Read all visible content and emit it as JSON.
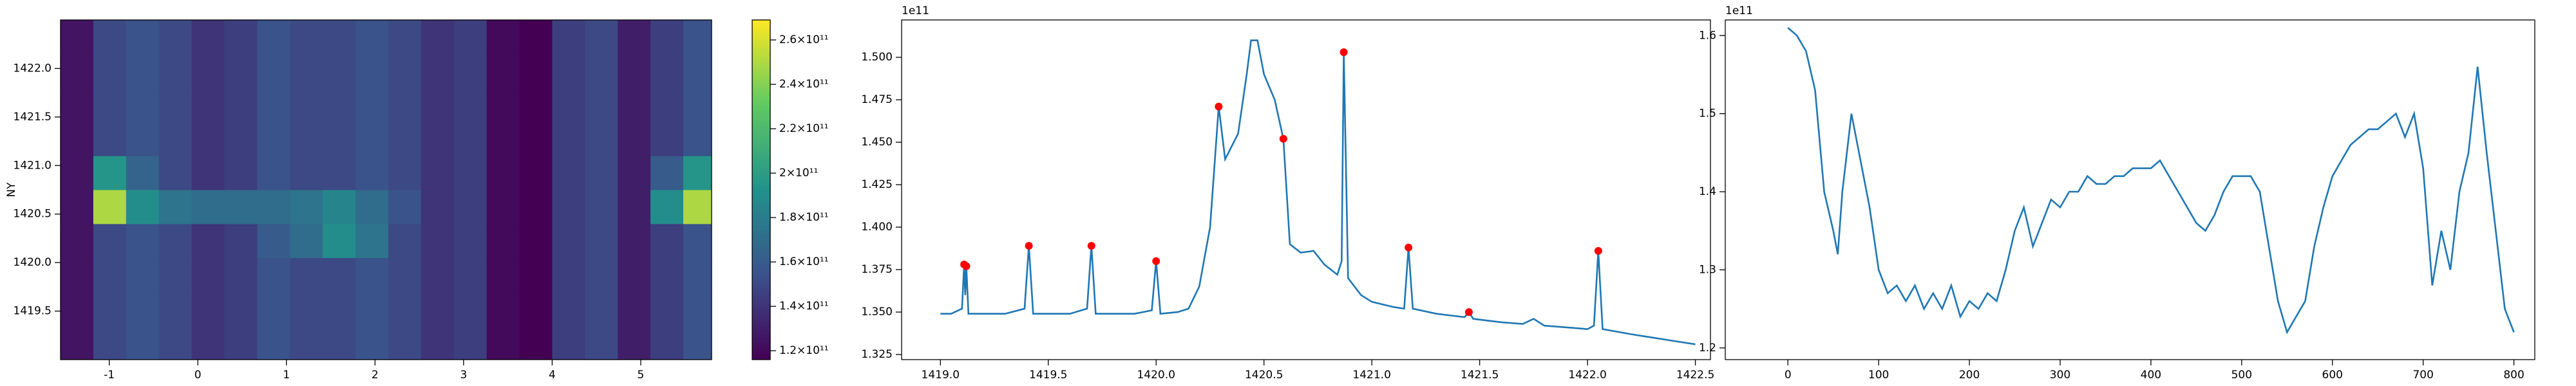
{
  "chart_data": [
    {
      "type": "heatmap",
      "y_label": "NY",
      "colormap": "viridis",
      "x_edges": [
        -1.55,
        -1.18,
        -0.81,
        -0.44,
        -0.07,
        0.3,
        0.67,
        1.04,
        1.41,
        1.78,
        2.15,
        2.52,
        2.89,
        3.26,
        3.63,
        4.0,
        4.37,
        4.74,
        5.11,
        5.48,
        5.8
      ],
      "y_edges": [
        1419.0,
        1419.35,
        1419.7,
        1420.05,
        1420.4,
        1420.75,
        1421.1,
        1421.45,
        1421.8,
        1422.15,
        1422.5
      ],
      "z": [
        [
          125000000000.0,
          150000000000.0,
          155000000000.0,
          150000000000.0,
          140000000000.0,
          145000000000.0,
          155000000000.0,
          150000000000.0,
          150000000000.0,
          155000000000.0,
          150000000000.0,
          140000000000.0,
          145000000000.0,
          120000000000.0,
          115000000000.0,
          145000000000.0,
          150000000000.0,
          130000000000.0,
          145000000000.0,
          155000000000.0
        ],
        [
          125000000000.0,
          150000000000.0,
          155000000000.0,
          150000000000.0,
          140000000000.0,
          145000000000.0,
          155000000000.0,
          150000000000.0,
          150000000000.0,
          155000000000.0,
          150000000000.0,
          140000000000.0,
          145000000000.0,
          120000000000.0,
          115000000000.0,
          145000000000.0,
          150000000000.0,
          130000000000.0,
          145000000000.0,
          155000000000.0
        ],
        [
          125000000000.0,
          150000000000.0,
          155000000000.0,
          150000000000.0,
          140000000000.0,
          145000000000.0,
          155000000000.0,
          150000000000.0,
          150000000000.0,
          155000000000.0,
          150000000000.0,
          140000000000.0,
          145000000000.0,
          120000000000.0,
          115000000000.0,
          145000000000.0,
          150000000000.0,
          130000000000.0,
          145000000000.0,
          155000000000.0
        ],
        [
          125000000000.0,
          150000000000.0,
          155000000000.0,
          150000000000.0,
          140000000000.0,
          145000000000.0,
          160000000000.0,
          170000000000.0,
          190000000000.0,
          175000000000.0,
          150000000000.0,
          140000000000.0,
          145000000000.0,
          120000000000.0,
          115000000000.0,
          145000000000.0,
          150000000000.0,
          130000000000.0,
          145000000000.0,
          155000000000.0
        ],
        [
          125000000000.0,
          250000000000.0,
          190000000000.0,
          175000000000.0,
          170000000000.0,
          170000000000.0,
          170000000000.0,
          175000000000.0,
          185000000000.0,
          170000000000.0,
          155000000000.0,
          140000000000.0,
          145000000000.0,
          120000000000.0,
          115000000000.0,
          145000000000.0,
          150000000000.0,
          130000000000.0,
          190000000000.0,
          250000000000.0
        ],
        [
          125000000000.0,
          195000000000.0,
          165000000000.0,
          150000000000.0,
          140000000000.0,
          145000000000.0,
          155000000000.0,
          150000000000.0,
          150000000000.0,
          155000000000.0,
          150000000000.0,
          140000000000.0,
          145000000000.0,
          120000000000.0,
          115000000000.0,
          145000000000.0,
          150000000000.0,
          130000000000.0,
          160000000000.0,
          195000000000.0
        ],
        [
          125000000000.0,
          150000000000.0,
          155000000000.0,
          150000000000.0,
          140000000000.0,
          145000000000.0,
          155000000000.0,
          150000000000.0,
          150000000000.0,
          155000000000.0,
          150000000000.0,
          140000000000.0,
          145000000000.0,
          120000000000.0,
          115000000000.0,
          145000000000.0,
          150000000000.0,
          130000000000.0,
          145000000000.0,
          155000000000.0
        ],
        [
          125000000000.0,
          150000000000.0,
          155000000000.0,
          150000000000.0,
          140000000000.0,
          145000000000.0,
          155000000000.0,
          150000000000.0,
          150000000000.0,
          155000000000.0,
          150000000000.0,
          140000000000.0,
          145000000000.0,
          120000000000.0,
          115000000000.0,
          145000000000.0,
          150000000000.0,
          130000000000.0,
          145000000000.0,
          155000000000.0
        ],
        [
          125000000000.0,
          150000000000.0,
          155000000000.0,
          150000000000.0,
          140000000000.0,
          145000000000.0,
          155000000000.0,
          150000000000.0,
          150000000000.0,
          155000000000.0,
          150000000000.0,
          140000000000.0,
          145000000000.0,
          120000000000.0,
          115000000000.0,
          145000000000.0,
          150000000000.0,
          130000000000.0,
          145000000000.0,
          155000000000.0
        ],
        [
          125000000000.0,
          150000000000.0,
          155000000000.0,
          150000000000.0,
          140000000000.0,
          145000000000.0,
          155000000000.0,
          150000000000.0,
          150000000000.0,
          155000000000.0,
          150000000000.0,
          140000000000.0,
          145000000000.0,
          120000000000.0,
          115000000000.0,
          145000000000.0,
          150000000000.0,
          130000000000.0,
          145000000000.0,
          155000000000.0
        ]
      ],
      "xlim": [
        -1.55,
        5.8
      ],
      "xticks": [
        -1,
        0,
        1,
        2,
        3,
        4,
        5
      ],
      "ylim": [
        1419.0,
        1422.5
      ],
      "yticks": [
        {
          "value": 1419.5,
          "label": "1419.5"
        },
        {
          "value": 1420.0,
          "label": "1420.0"
        },
        {
          "value": 1420.5,
          "label": "1420.5"
        },
        {
          "value": 1421.0,
          "label": "1421.0"
        },
        {
          "value": 1421.5,
          "label": "1421.5"
        },
        {
          "value": 1422.0,
          "label": "1422.0"
        }
      ],
      "clim": [
        116000000000.0,
        269000000000.0
      ],
      "colorbar_ticks": [
        {
          "value": 120000000000.0,
          "label": "1.2×10¹¹"
        },
        {
          "value": 140000000000.0,
          "label": "1.4×10¹¹"
        },
        {
          "value": 160000000000.0,
          "label": "1.6×10¹¹"
        },
        {
          "value": 180000000000.0,
          "label": "1.8×10¹¹"
        },
        {
          "value": 200000000000.0,
          "label": "2×10¹¹"
        },
        {
          "value": 220000000000.0,
          "label": "2.2×10¹¹"
        },
        {
          "value": 240000000000.0,
          "label": "2.4×10¹¹"
        },
        {
          "value": 260000000000.0,
          "label": "2.6×10¹¹"
        }
      ]
    },
    {
      "type": "line",
      "offset_text": "1e11",
      "color": "#1f77b4",
      "x": [
        1419.0,
        1419.05,
        1419.1,
        1419.11,
        1419.115,
        1419.12,
        1419.13,
        1419.2,
        1419.3,
        1419.39,
        1419.41,
        1419.43,
        1419.5,
        1419.6,
        1419.68,
        1419.7,
        1419.72,
        1419.8,
        1419.9,
        1419.98,
        1420.0,
        1420.02,
        1420.1,
        1420.15,
        1420.2,
        1420.25,
        1420.29,
        1420.32,
        1420.38,
        1420.42,
        1420.44,
        1420.47,
        1420.5,
        1420.55,
        1420.59,
        1420.62,
        1420.67,
        1420.73,
        1420.78,
        1420.84,
        1420.86,
        1420.87,
        1420.89,
        1420.95,
        1421.0,
        1421.1,
        1421.15,
        1421.17,
        1421.19,
        1421.3,
        1421.43,
        1421.45,
        1421.47,
        1421.6,
        1421.7,
        1421.75,
        1421.8,
        1421.9,
        1422.0,
        1422.03,
        1422.05,
        1422.07,
        1422.2,
        1422.3,
        1422.4,
        1422.5
      ],
      "values": [
        1.349,
        1.349,
        1.352,
        1.378,
        1.36,
        1.377,
        1.349,
        1.349,
        1.349,
        1.352,
        1.389,
        1.349,
        1.349,
        1.349,
        1.352,
        1.389,
        1.349,
        1.349,
        1.349,
        1.351,
        1.38,
        1.349,
        1.35,
        1.352,
        1.365,
        1.4,
        1.471,
        1.44,
        1.455,
        1.49,
        1.51,
        1.51,
        1.49,
        1.475,
        1.452,
        1.39,
        1.385,
        1.386,
        1.378,
        1.372,
        1.38,
        1.503,
        1.37,
        1.36,
        1.356,
        1.353,
        1.352,
        1.388,
        1.352,
        1.349,
        1.347,
        1.35,
        1.346,
        1.344,
        1.343,
        1.346,
        1.342,
        1.341,
        1.34,
        1.342,
        1.386,
        1.34,
        1.337,
        1.335,
        1.333,
        1.331
      ],
      "markers": {
        "color": "red",
        "x": [
          1419.11,
          1419.12,
          1419.41,
          1419.7,
          1420.0,
          1420.29,
          1420.59,
          1420.87,
          1421.17,
          1421.45,
          1422.05
        ],
        "values": [
          1.378,
          1.377,
          1.389,
          1.389,
          1.38,
          1.471,
          1.452,
          1.503,
          1.388,
          1.35,
          1.386
        ]
      },
      "xlim": [
        1418.82,
        1422.57
      ],
      "xticks": [
        {
          "value": 1419.0,
          "label": "1419.0"
        },
        {
          "value": 1419.5,
          "label": "1419.5"
        },
        {
          "value": 1420.0,
          "label": "1420.0"
        },
        {
          "value": 1420.5,
          "label": "1420.5"
        },
        {
          "value": 1421.0,
          "label": "1421.0"
        },
        {
          "value": 1421.5,
          "label": "1421.5"
        },
        {
          "value": 1422.0,
          "label": "1422.0"
        },
        {
          "value": 1422.5,
          "label": "1422.5"
        }
      ],
      "ylim": [
        1.322,
        1.522
      ],
      "yticks": [
        {
          "value": 1.325,
          "label": "1.325"
        },
        {
          "value": 1.35,
          "label": "1.350"
        },
        {
          "value": 1.375,
          "label": "1.375"
        },
        {
          "value": 1.4,
          "label": "1.400"
        },
        {
          "value": 1.425,
          "label": "1.425"
        },
        {
          "value": 1.45,
          "label": "1.450"
        },
        {
          "value": 1.475,
          "label": "1.475"
        },
        {
          "value": 1.5,
          "label": "1.500"
        }
      ]
    },
    {
      "type": "line",
      "offset_text": "1e11",
      "color": "#1f77b4",
      "x": [
        0,
        10,
        20,
        30,
        40,
        50,
        55,
        60,
        70,
        80,
        90,
        100,
        110,
        120,
        130,
        140,
        150,
        160,
        170,
        180,
        190,
        200,
        210,
        220,
        230,
        240,
        250,
        260,
        270,
        280,
        290,
        300,
        310,
        320,
        330,
        340,
        350,
        360,
        370,
        380,
        390,
        400,
        410,
        420,
        430,
        440,
        450,
        460,
        470,
        480,
        490,
        500,
        510,
        520,
        530,
        540,
        550,
        560,
        570,
        580,
        590,
        600,
        610,
        620,
        630,
        640,
        650,
        660,
        670,
        680,
        690,
        700,
        710,
        720,
        730,
        740,
        750,
        760,
        770,
        780,
        790,
        800
      ],
      "values": [
        1.61,
        1.6,
        1.58,
        1.53,
        1.4,
        1.35,
        1.32,
        1.4,
        1.5,
        1.44,
        1.38,
        1.3,
        1.27,
        1.28,
        1.26,
        1.28,
        1.25,
        1.27,
        1.25,
        1.28,
        1.24,
        1.26,
        1.25,
        1.27,
        1.26,
        1.3,
        1.35,
        1.38,
        1.33,
        1.36,
        1.39,
        1.38,
        1.4,
        1.4,
        1.42,
        1.41,
        1.41,
        1.42,
        1.42,
        1.43,
        1.43,
        1.43,
        1.44,
        1.42,
        1.4,
        1.38,
        1.36,
        1.35,
        1.37,
        1.4,
        1.42,
        1.42,
        1.42,
        1.4,
        1.33,
        1.26,
        1.22,
        1.24,
        1.26,
        1.33,
        1.38,
        1.42,
        1.44,
        1.46,
        1.47,
        1.48,
        1.48,
        1.49,
        1.5,
        1.47,
        1.5,
        1.43,
        1.28,
        1.35,
        1.3,
        1.4,
        1.45,
        1.56,
        1.45,
        1.35,
        1.25,
        1.22
      ],
      "xlim": [
        -69,
        823
      ],
      "xticks": [
        0,
        100,
        200,
        300,
        400,
        500,
        600,
        700,
        800
      ],
      "ylim": [
        1.185,
        1.62
      ],
      "yticks": [
        1.2,
        1.3,
        1.4,
        1.5,
        1.6
      ]
    }
  ]
}
